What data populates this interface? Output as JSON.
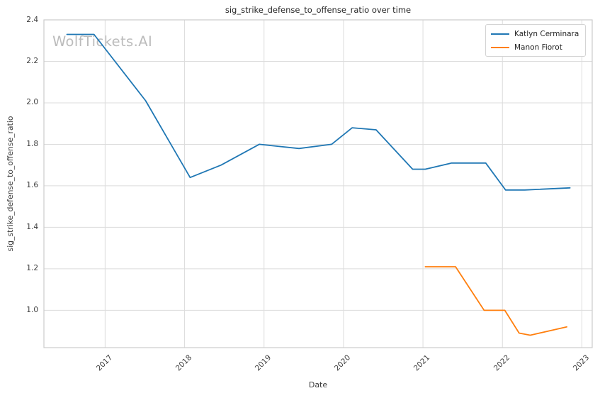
{
  "watermark": "WolfTickets.AI",
  "chart_data": {
    "type": "line",
    "title": "sig_strike_defense_to_offense_ratio over time",
    "xlabel": "Date",
    "ylabel": "sig_strike_defense_to_offense_ratio",
    "grid": true,
    "legend_position": "top-right",
    "xlim": [
      2016.23,
      2023.13
    ],
    "ylim": [
      0.82,
      2.4
    ],
    "xticks": [
      2017,
      2018,
      2019,
      2020,
      2021,
      2022,
      2023
    ],
    "xtick_labels": [
      "2017",
      "2018",
      "2019",
      "2020",
      "2021",
      "2022",
      "2023"
    ],
    "yticks": [
      1.0,
      1.2,
      1.4,
      1.6,
      1.8,
      2.0,
      2.2,
      2.4
    ],
    "ytick_labels": [
      "1.0",
      "1.2",
      "1.4",
      "1.6",
      "1.8",
      "2.0",
      "2.2",
      "2.4"
    ],
    "series": [
      {
        "name": "Katlyn Cerminara",
        "color": "#1f77b4",
        "x": [
          2016.52,
          2016.86,
          2017.51,
          2018.07,
          2018.46,
          2018.94,
          2019.44,
          2019.85,
          2020.11,
          2020.41,
          2020.87,
          2021.03,
          2021.36,
          2021.79,
          2022.04,
          2022.28,
          2022.85
        ],
        "values": [
          2.33,
          2.33,
          2.01,
          1.64,
          1.7,
          1.8,
          1.78,
          1.8,
          1.88,
          1.87,
          1.68,
          1.68,
          1.71,
          1.71,
          1.58,
          1.58,
          1.59
        ]
      },
      {
        "name": "Manon Fiorot",
        "color": "#ff7f0e",
        "x": [
          2021.03,
          2021.41,
          2021.77,
          2022.03,
          2022.21,
          2022.35,
          2022.81
        ],
        "values": [
          1.21,
          1.21,
          1.0,
          1.0,
          0.89,
          0.88,
          0.92
        ]
      }
    ]
  }
}
